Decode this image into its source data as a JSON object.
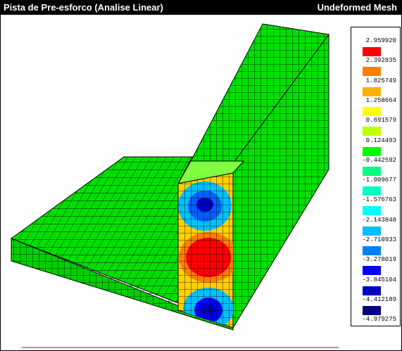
{
  "header": {
    "title": "Pista de Pre-esforco (Analise Linear)",
    "mode": "Undeformed Mesh"
  },
  "legend": {
    "values": [
      "2.959920",
      "2.392835",
      "1.825749",
      "1.258664",
      "0.691579",
      "0.124493",
      "-0.442592",
      "-1.009677",
      "-1.576763",
      "-2.143848",
      "-2.710933",
      "-3.278019",
      "-3.845104",
      "-4.412189",
      "-4.979275"
    ],
    "colors": [
      "#ff0000",
      "#ff8000",
      "#ffb000",
      "#ffff00",
      "#c0ff00",
      "#00ff00",
      "#00ff80",
      "#00ffc0",
      "#00ffff",
      "#00c0ff",
      "#0080ff",
      "#0000ff",
      "#0000c0",
      "#000080"
    ]
  }
}
